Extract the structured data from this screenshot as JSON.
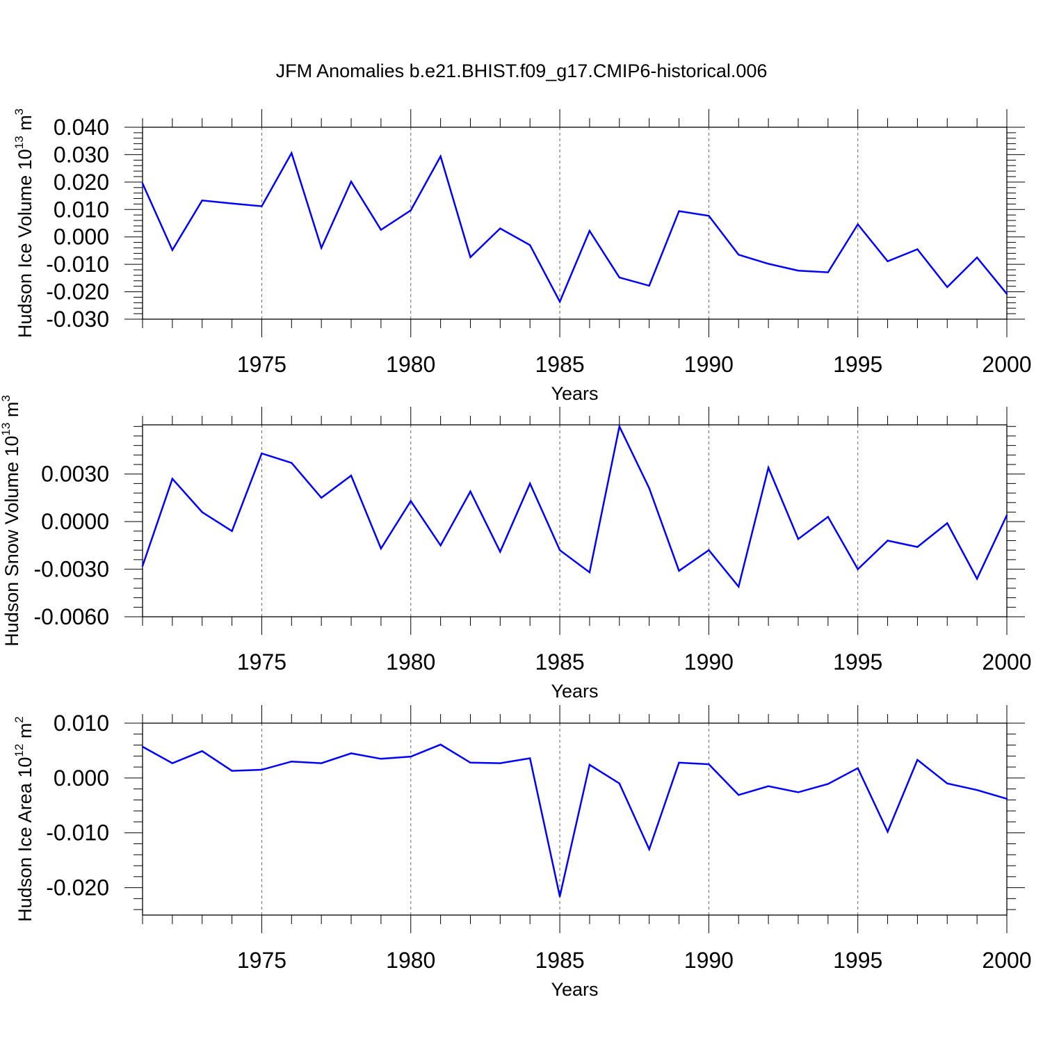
{
  "title": "JFM Anomalies b.e21.BHIST.f09_g17.CMIP6-historical.006",
  "chart_data": [
    {
      "type": "line",
      "ylabel": "Hudson Ice Volume 10",
      "ylabel_exp": "13",
      "ylabel_unit": " m",
      "ylabel_unit_exp": "3",
      "xlabel": "Years",
      "xlim": [
        1971,
        2000
      ],
      "ylim": [
        -0.03,
        0.04
      ],
      "yticks": [
        0.04,
        0.03,
        0.02,
        0.01,
        0.0,
        -0.01,
        -0.02,
        -0.03
      ],
      "ytick_labels": [
        "0.040",
        "0.030",
        "0.020",
        "0.010",
        "0.000",
        "-0.010",
        "-0.020",
        "-0.030"
      ],
      "ytick_decimals": 3,
      "yminor": 0.002,
      "xticks": [
        1975,
        1980,
        1985,
        1990,
        1995,
        2000
      ],
      "xtick_labels": [
        "1975",
        "1980",
        "1985",
        "1990",
        "1995",
        "2000"
      ],
      "color": "#0000ff",
      "x": [
        1971,
        1972,
        1973,
        1974,
        1975,
        1976,
        1977,
        1978,
        1979,
        1980,
        1981,
        1982,
        1983,
        1984,
        1985,
        1986,
        1987,
        1988,
        1989,
        1990,
        1991,
        1992,
        1993,
        1994,
        1995,
        1996,
        1997,
        1998,
        1999,
        2000
      ],
      "values": [
        0.0195,
        -0.0048,
        0.0133,
        0.0122,
        0.0112,
        0.0306,
        -0.004,
        0.0202,
        0.0026,
        0.0097,
        0.0294,
        -0.0074,
        0.0031,
        -0.003,
        -0.0236,
        0.0022,
        -0.0148,
        -0.0178,
        0.0094,
        0.0077,
        -0.0065,
        -0.0098,
        -0.0123,
        -0.0129,
        0.0046,
        -0.0089,
        -0.0045,
        -0.0183,
        -0.0075,
        -0.0208
      ]
    },
    {
      "type": "line",
      "ylabel": "Hudson Snow Volume 10",
      "ylabel_exp": "13",
      "ylabel_unit": " m",
      "ylabel_unit_exp": "3",
      "xlabel": "Years",
      "xlim": [
        1971,
        2000
      ],
      "ylim": [
        -0.006,
        0.0061
      ],
      "yticks": [
        0.003,
        0.0,
        -0.003,
        -0.006
      ],
      "ytick_labels": [
        "0.0030",
        "0.0000",
        "-0.0030",
        "-0.0060"
      ],
      "ytick_decimals": 4,
      "yminor": 0.0006,
      "xticks": [
        1975,
        1980,
        1985,
        1990,
        1995,
        2000
      ],
      "xtick_labels": [
        "1975",
        "1980",
        "1985",
        "1990",
        "1995",
        "2000"
      ],
      "color": "#0000ff",
      "x": [
        1971,
        1972,
        1973,
        1974,
        1975,
        1976,
        1977,
        1978,
        1979,
        1980,
        1981,
        1982,
        1983,
        1984,
        1985,
        1986,
        1987,
        1988,
        1989,
        1990,
        1991,
        1992,
        1993,
        1994,
        1995,
        1996,
        1997,
        1998,
        1999,
        2000
      ],
      "values": [
        -0.0028,
        0.0027,
        0.0006,
        -0.0006,
        0.0043,
        0.0037,
        0.0015,
        0.0029,
        -0.0017,
        0.0013,
        -0.0015,
        0.0019,
        -0.0019,
        0.0024,
        -0.0018,
        -0.0032,
        0.006,
        0.0021,
        -0.0031,
        -0.0018,
        -0.0041,
        0.0034,
        -0.0011,
        0.0003,
        -0.003,
        -0.0012,
        -0.0016,
        -0.0001,
        -0.0036,
        0.0004
      ]
    },
    {
      "type": "line",
      "ylabel": "Hudson Ice Area 10",
      "ylabel_exp": "12",
      "ylabel_unit": " m",
      "ylabel_unit_exp": "2",
      "xlabel": "Years",
      "xlim": [
        1971,
        2000
      ],
      "ylim": [
        -0.025,
        0.01
      ],
      "yticks": [
        0.01,
        0.0,
        -0.01,
        -0.02
      ],
      "ytick_labels": [
        "0.010",
        "0.000",
        "-0.010",
        "-0.020"
      ],
      "ytick_decimals": 3,
      "yminor": 0.002,
      "xticks": [
        1975,
        1980,
        1985,
        1990,
        1995,
        2000
      ],
      "xtick_labels": [
        "1975",
        "1980",
        "1985",
        "1990",
        "1995",
        "2000"
      ],
      "color": "#0000ff",
      "x": [
        1971,
        1972,
        1973,
        1974,
        1975,
        1976,
        1977,
        1978,
        1979,
        1980,
        1981,
        1982,
        1983,
        1984,
        1985,
        1986,
        1987,
        1988,
        1989,
        1990,
        1991,
        1992,
        1993,
        1994,
        1995,
        1996,
        1997,
        1998,
        1999,
        2000
      ],
      "values": [
        0.0057,
        0.0027,
        0.0049,
        0.0013,
        0.0015,
        0.003,
        0.0027,
        0.0045,
        0.0035,
        0.0039,
        0.0061,
        0.0028,
        0.0027,
        0.0036,
        -0.0216,
        0.0024,
        -0.001,
        -0.013,
        0.0028,
        0.0025,
        -0.0031,
        -0.0015,
        -0.0026,
        -0.0011,
        0.0018,
        -0.0098,
        0.0033,
        -0.001,
        -0.0022,
        -0.0038
      ]
    }
  ]
}
